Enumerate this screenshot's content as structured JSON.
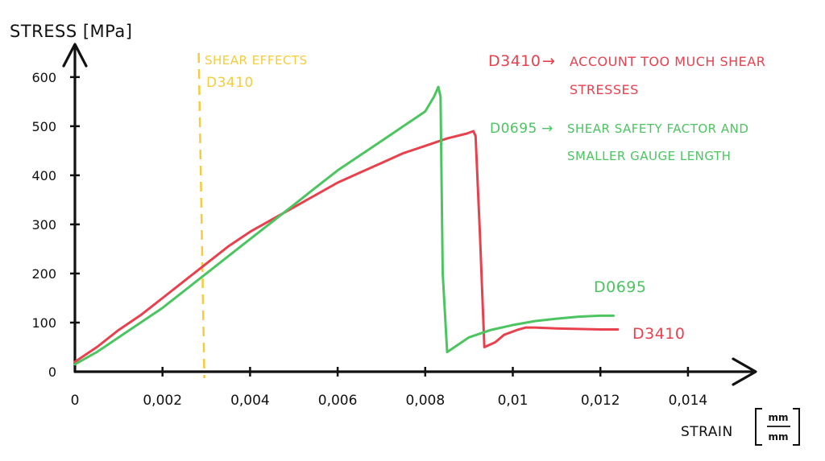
{
  "chart_data": {
    "type": "line",
    "ylabel": "STRESS [MPa]",
    "xlabel": "STRAIN",
    "xlabel_unit_num": "mm",
    "xlabel_unit_den": "mm",
    "x_ticks": [
      "0",
      "0,002",
      "0,004",
      "0,006",
      "0,008",
      "0,01",
      "0,012",
      "0,014"
    ],
    "x_tick_values": [
      0,
      0.002,
      0.004,
      0.006,
      0.008,
      0.01,
      0.012,
      0.014
    ],
    "y_ticks": [
      "0",
      "100",
      "200",
      "300",
      "400",
      "500",
      "600"
    ],
    "y_tick_values": [
      0,
      100,
      200,
      300,
      400,
      500,
      600
    ],
    "xlim": [
      0,
      0.0154
    ],
    "ylim": [
      0,
      680
    ],
    "grid": false,
    "series": [
      {
        "name": "D3410",
        "color": "#e8414e",
        "x": [
          0,
          0.0005,
          0.001,
          0.0015,
          0.002,
          0.0025,
          0.003,
          0.0035,
          0.004,
          0.0045,
          0.005,
          0.0055,
          0.006,
          0.0065,
          0.007,
          0.0075,
          0.008,
          0.0085,
          0.00895,
          0.0091,
          0.00915,
          0.00925,
          0.00935,
          0.0096,
          0.0098,
          0.0101,
          0.0103,
          0.0105,
          0.011,
          0.0115,
          0.012,
          0.0124
        ],
        "y": [
          20,
          50,
          85,
          115,
          150,
          185,
          220,
          255,
          285,
          310,
          335,
          360,
          385,
          405,
          425,
          445,
          460,
          475,
          485,
          490,
          480,
          280,
          50,
          60,
          75,
          85,
          90,
          90,
          88,
          87,
          86,
          86
        ]
      },
      {
        "name": "D0695",
        "color": "#4cc561",
        "x": [
          0,
          0.0005,
          0.001,
          0.0015,
          0.002,
          0.0025,
          0.003,
          0.0035,
          0.004,
          0.0045,
          0.005,
          0.0055,
          0.006,
          0.0065,
          0.007,
          0.0075,
          0.008,
          0.0082,
          0.0083,
          0.00835,
          0.0084,
          0.0085,
          0.009,
          0.0095,
          0.01,
          0.0105,
          0.011,
          0.0115,
          0.012,
          0.0123
        ],
        "y": [
          15,
          40,
          70,
          100,
          130,
          165,
          200,
          235,
          270,
          305,
          340,
          375,
          410,
          440,
          470,
          500,
          530,
          560,
          580,
          560,
          200,
          40,
          70,
          85,
          95,
          103,
          108,
          112,
          114,
          114
        ]
      }
    ],
    "reference_line": {
      "x": 0.0029,
      "label_1": "SHEAR EFFECTS",
      "label_2": "D3410",
      "color": "#f5cc3c"
    },
    "end_labels": {
      "d0695": "D0695",
      "d3410": "D3410"
    },
    "annotations": [
      {
        "color": "#e8414e",
        "key": "D3410",
        "arrow": "→",
        "line_1": "ACCOUNT TOO MUCH SHEAR",
        "line_2": "STRESSES"
      },
      {
        "color": "#4cc561",
        "key": "D0695",
        "arrow": "→",
        "line_1": "SHEAR SAFETY FACTOR AND",
        "line_2": "SMALLER GAUGE LENGTH"
      }
    ]
  }
}
